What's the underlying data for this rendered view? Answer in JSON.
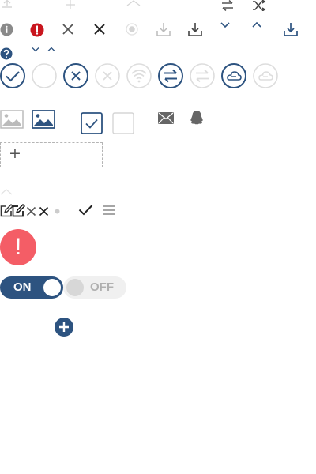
{
  "colors": {
    "primary": "#2d5380",
    "danger": "#c9161e",
    "alert": "#f45d66",
    "icon_dark": "#333333",
    "icon_grey": "#999999",
    "icon_light": "#d5d5d5"
  },
  "icons": {
    "row0": [
      "upload-icon",
      "plus-icon",
      "chevron-up-icon",
      "swap-icon",
      "shuffle-icon"
    ],
    "row1": [
      "info-icon",
      "error-icon",
      "close-icon",
      "close-bold-icon",
      "radio-dot-icon",
      "download-icon",
      "download-icon",
      "chevron-down-icon",
      "chevron-up-icon",
      "download-icon"
    ],
    "row2": [
      "help-icon",
      "chevron-down-icon",
      "chevron-up-icon"
    ],
    "row3": [
      "check-circle-icon",
      "empty-circle-icon",
      "close-circle-icon",
      "close-circle-icon",
      "wifi-circle-icon",
      "swap-circle-icon",
      "swap-circle-icon",
      "cloud-circle-icon",
      "cloud-circle-icon"
    ],
    "row4": [
      "image-icon",
      "image-icon",
      "checkbox-checked-icon",
      "checkbox-empty-icon",
      "mail-icon",
      "qq-icon"
    ],
    "row5": [
      "edit-icon",
      "edit-icon",
      "close-icon",
      "close-icon",
      "dot-icon",
      "check-icon",
      "menu-icon"
    ],
    "misc": [
      "exclamation-icon",
      "add-circle-icon"
    ]
  },
  "upload": {
    "label": "+"
  },
  "alert": {
    "symbol": "!"
  },
  "switches": {
    "on_label": "ON",
    "off_label": "OFF"
  }
}
